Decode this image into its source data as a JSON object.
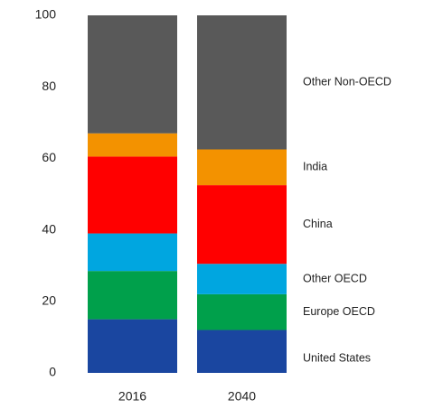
{
  "chart_data": {
    "type": "stacked_bar",
    "categories": [
      "2016",
      "2040"
    ],
    "series": [
      {
        "name": "United States",
        "color": "#1a46a0",
        "values": [
          15,
          12
        ]
      },
      {
        "name": "Europe OECD",
        "color": "#00a04b",
        "values": [
          13.5,
          10
        ]
      },
      {
        "name": "Other OECD",
        "color": "#00a6e0",
        "values": [
          10.5,
          8.5
        ]
      },
      {
        "name": "China",
        "color": "#ff0000",
        "values": [
          21.5,
          22
        ]
      },
      {
        "name": "India",
        "color": "#f39200",
        "values": [
          6.5,
          10
        ]
      },
      {
        "name": "Other Non-OECD",
        "color": "#595959",
        "values": [
          33,
          37.5
        ]
      }
    ],
    "ylim": [
      0,
      100
    ],
    "yticks": [
      0,
      20,
      40,
      60,
      80,
      100
    ],
    "grid": false,
    "legend": "right"
  }
}
